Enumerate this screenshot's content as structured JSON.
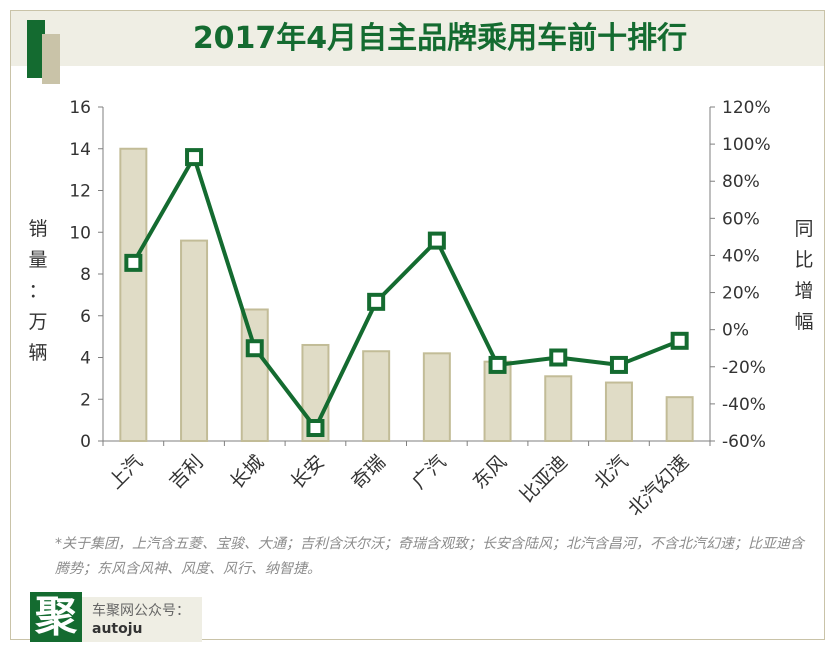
{
  "header": {
    "title": "2017年4月自主品牌乘用车前十排行"
  },
  "chart_data": {
    "type": "bar",
    "categories": [
      "上汽",
      "吉利",
      "长城",
      "长安",
      "奇瑞",
      "广汽",
      "东风",
      "比亚迪",
      "北汽",
      "北汽幻速"
    ],
    "series": [
      {
        "type": "bar",
        "values": [
          14.0,
          9.6,
          6.3,
          4.6,
          4.3,
          4.2,
          3.8,
          3.1,
          2.8,
          2.1
        ]
      },
      {
        "type": "line",
        "axis": "right",
        "values": [
          36,
          93,
          -10,
          -53,
          15,
          48,
          -19,
          -15,
          -19,
          -6
        ]
      }
    ],
    "ylabel": "销量：万辆",
    "y2label": "同比增幅",
    "ylim": [
      0,
      16
    ],
    "y2lim": [
      -60,
      120
    ],
    "yticks": [
      "0",
      "2",
      "4",
      "6",
      "8",
      "10",
      "12",
      "14",
      "16"
    ],
    "y2ticks": [
      "-60%",
      "-40%",
      "-20%",
      "0%",
      "20%",
      "40%",
      "60%",
      "80%",
      "100%",
      "120%"
    ],
    "grid": false,
    "colors": {
      "bar_fill": "#e0dcc6",
      "bar_stroke": "#c2bc97",
      "line": "#146b30",
      "title": "#146b30"
    }
  },
  "footnote": "*关于集团，上汽含五菱、宝骏、大通；吉利含沃尔沃；奇瑞含观致；长安含陆风；北汽含昌河，不含北汽幻速；比亚迪含腾势；东风含风神、风度、风行、纳智捷。",
  "logo": {
    "mark": "聚",
    "line1": "车聚网公众号：",
    "line2": "autoju"
  }
}
